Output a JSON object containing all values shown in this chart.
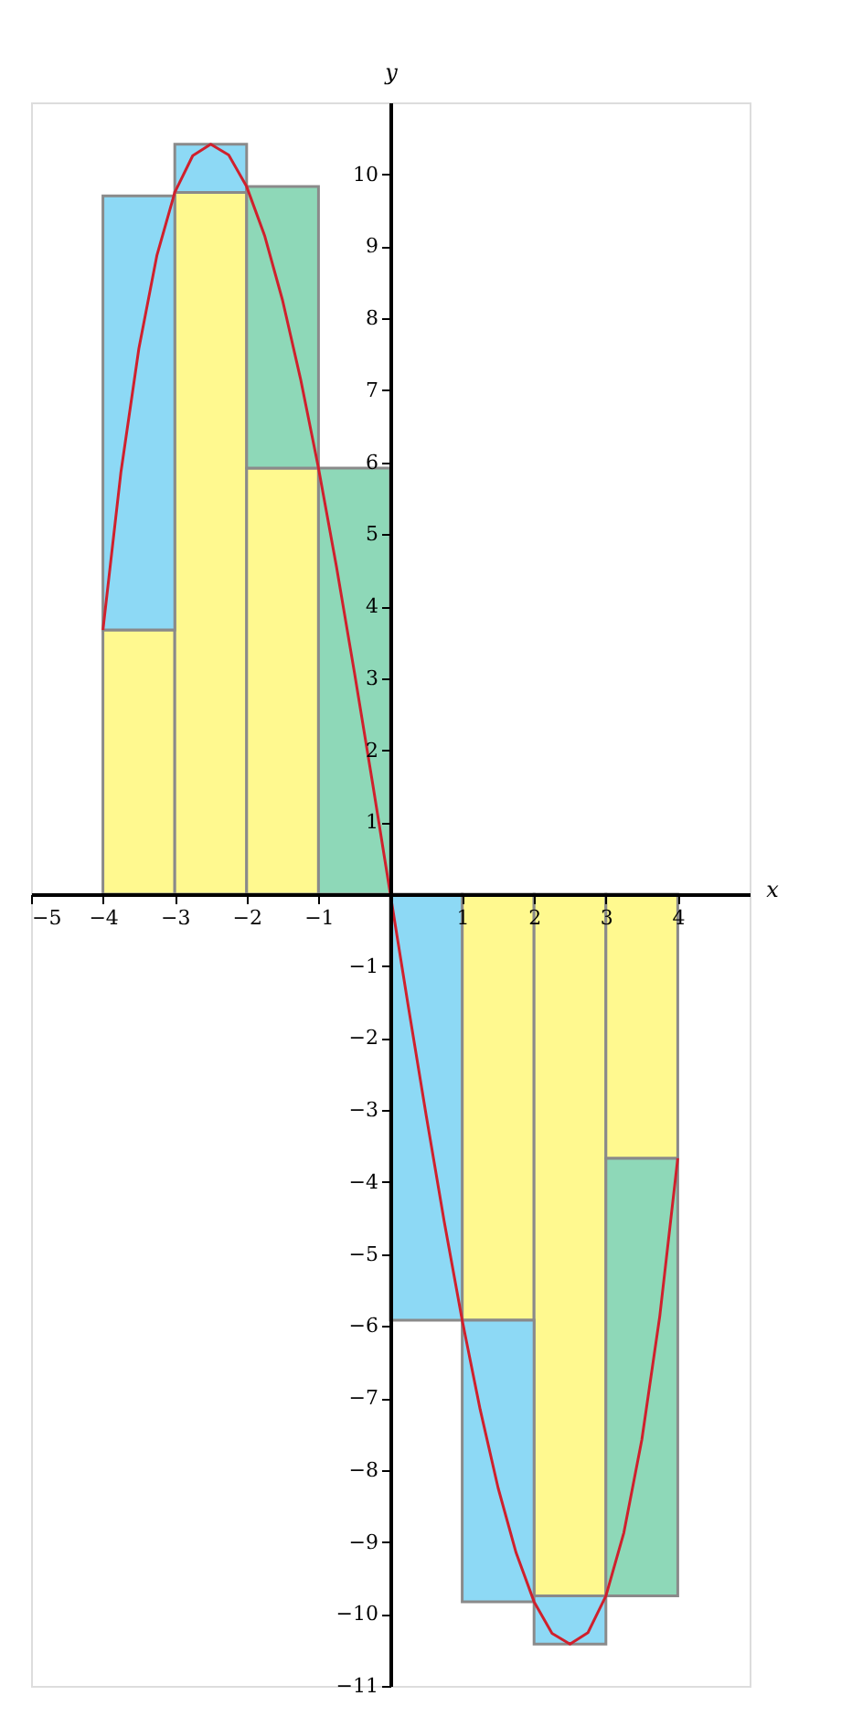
{
  "chart_data": [
    {
      "type": "bar",
      "stacked": true,
      "xlabel": "x",
      "ylabel": "y",
      "x": [
        -3.5,
        -2.5,
        -1.5,
        -0.5,
        0.5,
        1.5,
        2.5,
        3.5
      ],
      "xlim": [
        -5,
        5
      ],
      "ylim": [
        -11,
        11
      ],
      "xticks": [
        {
          "value": -5,
          "label": "−5"
        },
        {
          "value": -4,
          "label": "−4"
        },
        {
          "value": -3,
          "label": "−3"
        },
        {
          "value": -2,
          "label": "−2"
        },
        {
          "value": -1,
          "label": "−1"
        },
        1,
        2,
        3,
        4
      ],
      "yticks": [
        {
          "value": -11,
          "label": "−11"
        },
        {
          "value": -10,
          "label": "−10"
        },
        {
          "value": -9,
          "label": "−9"
        },
        {
          "value": -8,
          "label": "−8"
        },
        {
          "value": -7,
          "label": "−7"
        },
        {
          "value": -6,
          "label": "−6"
        },
        {
          "value": -5,
          "label": "−5"
        },
        {
          "value": -4,
          "label": "−4"
        },
        {
          "value": -3,
          "label": "−3"
        },
        {
          "value": -2,
          "label": "−2"
        },
        {
          "value": -1,
          "label": "−1"
        },
        1,
        2,
        3,
        4,
        5,
        6,
        7,
        8,
        9,
        10
      ],
      "series": [
        {
          "color": "#fff98f",
          "values": [
            3.67,
            9.75,
            5.92,
            null,
            null,
            -5.92,
            -9.75,
            -3.67
          ]
        },
        {
          "colors": [
            "#8dd9f5",
            "#8dd9f5",
            "#8ed8b8",
            "#8ed8b8",
            "#8dd9f5",
            "#8dd9f5",
            "#8dd9f5",
            "#8ed8b8"
          ],
          "values": [
            6.03,
            0.67,
            3.91,
            5.92,
            -5.92,
            -3.91,
            -0.67,
            -6.08
          ]
        },
        {
          "type": "line",
          "color": "#d0202c",
          "marker": "none",
          "line_style": "solid",
          "x": [
            -4,
            -3.75,
            -3.5,
            -3.25,
            -3,
            -2.75,
            -2.5,
            -2.25,
            -2,
            -1.75,
            -1.5,
            -1.25,
            -1,
            -0.75,
            -0.5,
            -0.25,
            0,
            0.25,
            0.5,
            0.75,
            1,
            1.25,
            1.5,
            1.75,
            2,
            2.25,
            2.5,
            2.75,
            3,
            3.25,
            3.5,
            3.75,
            4
          ],
          "values": [
            3.67,
            5.86,
            7.58,
            8.87,
            9.75,
            10.26,
            10.42,
            10.27,
            9.83,
            9.15,
            8.25,
            7.16,
            5.92,
            4.55,
            3.08,
            1.56,
            0,
            -1.56,
            -3.08,
            -4.55,
            -5.92,
            -7.16,
            -8.25,
            -9.15,
            -9.83,
            -10.27,
            -10.42,
            -10.26,
            -9.75,
            -8.87,
            -7.58,
            -5.86,
            -3.67
          ]
        }
      ]
    }
  ]
}
